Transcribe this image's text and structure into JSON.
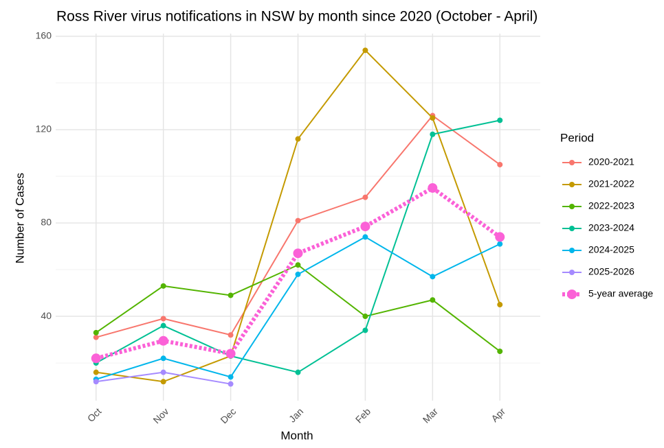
{
  "chart_data": {
    "type": "line",
    "title": "Ross River virus notifications in NSW by month since 2020 (October - April)",
    "x_label": "Month",
    "y_label": "Number of Cases",
    "legend_title": "Period",
    "legend": "right",
    "grid": true,
    "categories": [
      "Oct",
      "Nov",
      "Dec",
      "Jan",
      "Feb",
      "Mar",
      "Apr"
    ],
    "ylim": [
      3.85,
      161.15
    ],
    "yticks": [
      40,
      80,
      120,
      160
    ],
    "yminor": [
      20,
      60,
      100,
      140
    ],
    "series": [
      {
        "name": "2020-2021",
        "color": "#F8766D",
        "values": [
          31,
          39,
          32,
          81,
          91,
          126,
          105
        ]
      },
      {
        "name": "2021-2022",
        "color": "#C49A00",
        "values": [
          16,
          12,
          23,
          116,
          154,
          125,
          45
        ]
      },
      {
        "name": "2022-2023",
        "color": "#53B400",
        "values": [
          33,
          53,
          49,
          62,
          40,
          47,
          25
        ]
      },
      {
        "name": "2023-2024",
        "color": "#00C094",
        "values": [
          20,
          36,
          23,
          16,
          34,
          118,
          124
        ]
      },
      {
        "name": "2024-2025",
        "color": "#00B6EB",
        "values": [
          13,
          22,
          14,
          58,
          74,
          57,
          71
        ]
      },
      {
        "name": "2025-2026",
        "color": "#A58AFF",
        "values": [
          12,
          16,
          11,
          null,
          null,
          null,
          null
        ]
      },
      {
        "name": "5-year average",
        "color": "#FB61D7",
        "dashed": true,
        "values": [
          22,
          29.5,
          24,
          67,
          78.5,
          95,
          74
        ]
      }
    ]
  }
}
